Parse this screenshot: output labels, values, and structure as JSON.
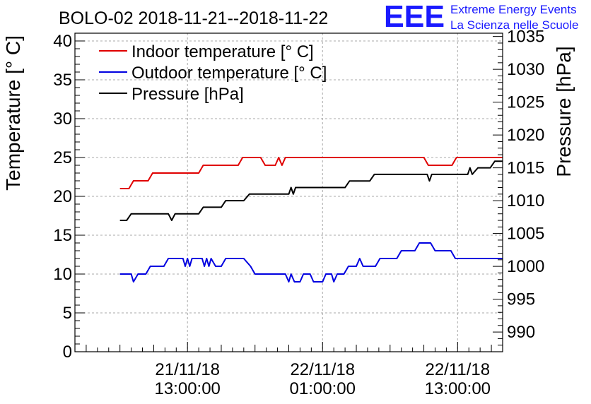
{
  "header": {
    "title": "BOLO-02 2018-11-21--2018-11-22",
    "logo_text": "EEE",
    "org_line1": "Extreme Energy Events",
    "org_line2": "La Scienza nelle Scuole"
  },
  "colors": {
    "indoor": "#e00000",
    "outdoor": "#0000e0",
    "pressure": "#000000",
    "logo": "#1a1aff",
    "grid": "#aaaaaa"
  },
  "chart_data": {
    "type": "line",
    "title": "BOLO-02 2018-11-21--2018-11-22",
    "x_unit": "hours since 21/11/18 00:00:00",
    "x_range": [
      3,
      41
    ],
    "x_ticks": [
      {
        "x": 13,
        "date": "21/11/18",
        "time": "13:00:00"
      },
      {
        "x": 25,
        "date": "22/11/18",
        "time": "01:00:00"
      },
      {
        "x": 37,
        "date": "22/11/18",
        "time": "13:00:00"
      }
    ],
    "y_left": {
      "label": "Temperature [° C]",
      "range": [
        0,
        41
      ],
      "ticks": [
        "0",
        "5",
        "10",
        "15",
        "20",
        "25",
        "30",
        "35",
        "40"
      ]
    },
    "y_right": {
      "label": "Pressure [hPa]",
      "range": [
        987,
        1035.5
      ],
      "ticks": [
        "990",
        "995",
        "1000",
        "1005",
        "1010",
        "1015",
        "1020",
        "1025",
        "1030",
        "1035"
      ]
    },
    "grid": true,
    "legend_position": "top-left",
    "series": [
      {
        "name": "Indoor temperature [° C]",
        "axis": "left",
        "points": [
          [
            7,
            21
          ],
          [
            7.8,
            21
          ],
          [
            8.2,
            22
          ],
          [
            9.5,
            22
          ],
          [
            9.9,
            23
          ],
          [
            14,
            23
          ],
          [
            14.4,
            24
          ],
          [
            17.5,
            24
          ],
          [
            17.9,
            25
          ],
          [
            19.5,
            25
          ],
          [
            19.9,
            24
          ],
          [
            20.8,
            24
          ],
          [
            21.1,
            25
          ],
          [
            21.4,
            24
          ],
          [
            21.7,
            25
          ],
          [
            34,
            25
          ],
          [
            34.4,
            24
          ],
          [
            36.5,
            24
          ],
          [
            36.9,
            25
          ],
          [
            41,
            25
          ]
        ]
      },
      {
        "name": "Outdoor temperature [° C]",
        "axis": "left",
        "points": [
          [
            7,
            10
          ],
          [
            8,
            10
          ],
          [
            8.2,
            9
          ],
          [
            8.6,
            10
          ],
          [
            9.3,
            10
          ],
          [
            9.7,
            11
          ],
          [
            10.9,
            11
          ],
          [
            11.3,
            12
          ],
          [
            12.6,
            12
          ],
          [
            12.8,
            11
          ],
          [
            13,
            12
          ],
          [
            13.2,
            11
          ],
          [
            13.4,
            12
          ],
          [
            14.3,
            12
          ],
          [
            14.5,
            11
          ],
          [
            14.7,
            12
          ],
          [
            14.9,
            11
          ],
          [
            15.1,
            12
          ],
          [
            15.5,
            11
          ],
          [
            16,
            11
          ],
          [
            16.4,
            12
          ],
          [
            18,
            12
          ],
          [
            18.6,
            11
          ],
          [
            19,
            10
          ],
          [
            21.7,
            10
          ],
          [
            22,
            9
          ],
          [
            22.2,
            10
          ],
          [
            22.5,
            9
          ],
          [
            23,
            9
          ],
          [
            23.3,
            10
          ],
          [
            23.9,
            10
          ],
          [
            24.2,
            9
          ],
          [
            25,
            9
          ],
          [
            25.3,
            10
          ],
          [
            25.8,
            10
          ],
          [
            26,
            9
          ],
          [
            26.3,
            10
          ],
          [
            26.9,
            10
          ],
          [
            27.3,
            11
          ],
          [
            28,
            11
          ],
          [
            28.3,
            12
          ],
          [
            28.6,
            11
          ],
          [
            29.7,
            11
          ],
          [
            30.1,
            12
          ],
          [
            31.6,
            12
          ],
          [
            32,
            13
          ],
          [
            33.2,
            13
          ],
          [
            33.6,
            14
          ],
          [
            34.6,
            14
          ],
          [
            35,
            13
          ],
          [
            36.4,
            13
          ],
          [
            36.8,
            12
          ],
          [
            41,
            12
          ]
        ]
      },
      {
        "name": "Pressure [hPa]",
        "axis": "right",
        "points": [
          [
            7,
            1007
          ],
          [
            7.6,
            1007
          ],
          [
            8,
            1008
          ],
          [
            11.3,
            1008
          ],
          [
            11.6,
            1007
          ],
          [
            11.9,
            1008
          ],
          [
            14,
            1008
          ],
          [
            14.4,
            1009
          ],
          [
            16,
            1009
          ],
          [
            16.4,
            1010
          ],
          [
            18,
            1010
          ],
          [
            18.5,
            1011
          ],
          [
            22,
            1011
          ],
          [
            22.2,
            1012
          ],
          [
            22.4,
            1011
          ],
          [
            22.6,
            1012
          ],
          [
            27,
            1012
          ],
          [
            27.4,
            1013
          ],
          [
            29.2,
            1013
          ],
          [
            29.6,
            1014
          ],
          [
            34.3,
            1014
          ],
          [
            34.5,
            1013
          ],
          [
            34.7,
            1014
          ],
          [
            37.9,
            1014
          ],
          [
            38.1,
            1015
          ],
          [
            38.3,
            1014
          ],
          [
            38.8,
            1015
          ],
          [
            39.9,
            1015
          ],
          [
            40.3,
            1016
          ],
          [
            41,
            1016
          ]
        ]
      }
    ]
  }
}
